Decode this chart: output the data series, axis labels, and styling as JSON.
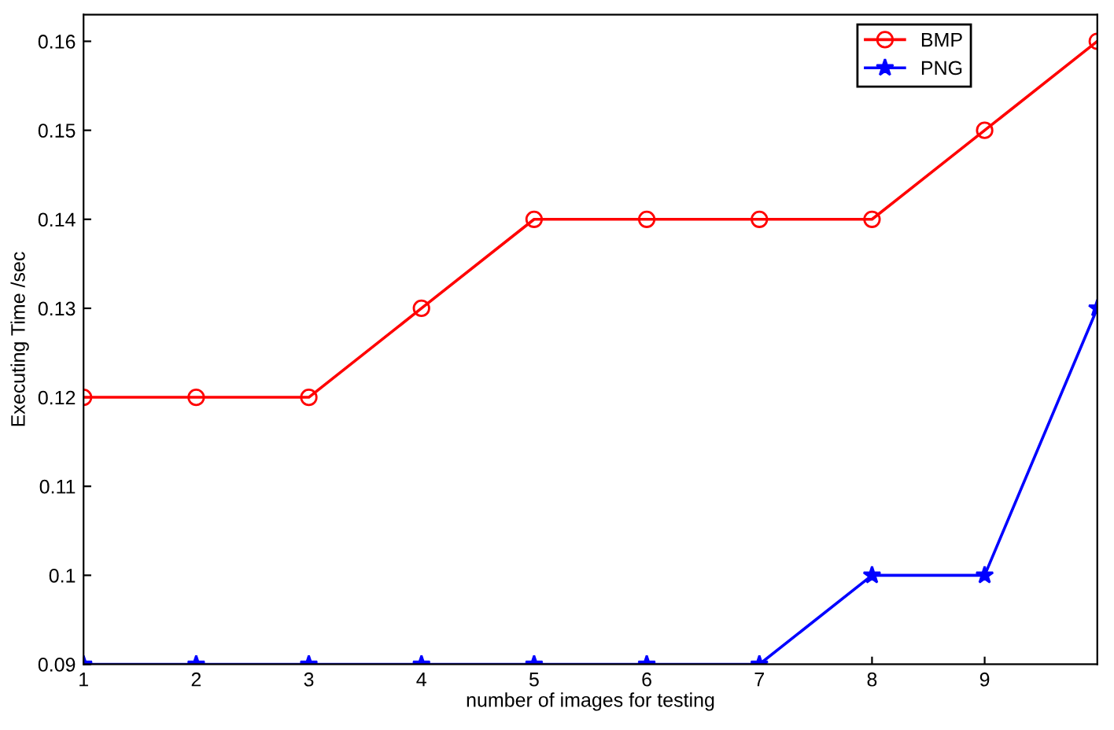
{
  "chart_data": {
    "type": "line",
    "xlabel": "number of images for testing",
    "ylabel": "Executing Time /sec",
    "x": [
      1,
      2,
      3,
      4,
      5,
      6,
      7,
      8,
      9,
      10
    ],
    "series": [
      {
        "name": "BMP",
        "color": "#ff0000",
        "marker": "circle",
        "values": [
          0.12,
          0.12,
          0.12,
          0.13,
          0.14,
          0.14,
          0.14,
          0.14,
          0.15,
          0.16
        ]
      },
      {
        "name": "PNG",
        "color": "#0000ff",
        "marker": "star",
        "values": [
          0.09,
          0.09,
          0.09,
          0.09,
          0.09,
          0.09,
          0.09,
          0.1,
          0.1,
          0.13
        ]
      }
    ],
    "xlim": [
      1,
      10
    ],
    "xticks": [
      1,
      2,
      3,
      4,
      5,
      6,
      7,
      8,
      9
    ],
    "ylim": [
      0.09,
      0.163
    ],
    "yticks": [
      0.09,
      0.1,
      0.11,
      0.12,
      0.13,
      0.14,
      0.15,
      0.16
    ],
    "grid": false,
    "legend": "top right",
    "line_style": "solid"
  }
}
